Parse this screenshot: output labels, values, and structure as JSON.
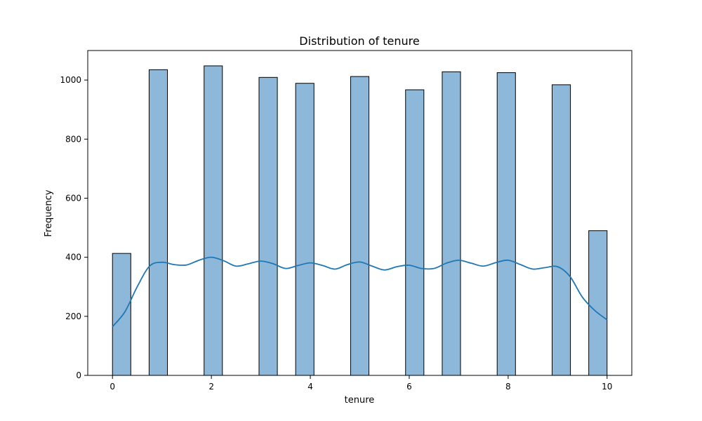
{
  "chart_data": {
    "type": "bar",
    "title": "Distribution of tenure",
    "xlabel": "tenure",
    "ylabel": "Frequency",
    "xlim": [
      -0.5,
      10.5
    ],
    "ylim": [
      0,
      1100
    ],
    "x_ticks": [
      0,
      2,
      4,
      6,
      8,
      10
    ],
    "y_ticks": [
      0,
      200,
      400,
      600,
      800,
      1000
    ],
    "grid": false,
    "legend": "none",
    "bin_width": 0.3704,
    "bars": [
      {
        "x_start": 0.0,
        "x_end": 0.3704,
        "value": 413
      },
      {
        "x_start": 0.7407,
        "x_end": 1.1111,
        "value": 1035
      },
      {
        "x_start": 1.8519,
        "x_end": 2.2222,
        "value": 1048
      },
      {
        "x_start": 2.963,
        "x_end": 3.3333,
        "value": 1009
      },
      {
        "x_start": 3.7037,
        "x_end": 4.0741,
        "value": 989
      },
      {
        "x_start": 4.8148,
        "x_end": 5.1852,
        "value": 1012
      },
      {
        "x_start": 5.9259,
        "x_end": 6.2963,
        "value": 967
      },
      {
        "x_start": 6.6667,
        "x_end": 7.037,
        "value": 1028
      },
      {
        "x_start": 7.7778,
        "x_end": 8.1481,
        "value": 1025
      },
      {
        "x_start": 8.8889,
        "x_end": 9.2593,
        "value": 984
      },
      {
        "x_start": 9.6296,
        "x_end": 10.0,
        "value": 490
      }
    ],
    "kde": {
      "x": [
        0,
        0.25,
        0.5,
        0.75,
        1.0,
        1.25,
        1.5,
        1.75,
        2.0,
        2.25,
        2.5,
        2.75,
        3.0,
        3.25,
        3.5,
        3.75,
        4.0,
        4.25,
        4.5,
        4.75,
        5.0,
        5.25,
        5.5,
        5.75,
        6.0,
        6.25,
        6.5,
        6.75,
        7.0,
        7.25,
        7.5,
        7.75,
        8.0,
        8.25,
        8.5,
        8.75,
        9.0,
        9.25,
        9.5,
        9.75,
        10.0
      ],
      "y": [
        165,
        215,
        300,
        370,
        383,
        375,
        374,
        390,
        400,
        388,
        370,
        378,
        387,
        378,
        362,
        372,
        381,
        372,
        360,
        375,
        384,
        370,
        357,
        368,
        373,
        362,
        362,
        380,
        390,
        380,
        370,
        382,
        390,
        375,
        360,
        365,
        368,
        335,
        265,
        220,
        188
      ]
    },
    "colors": {
      "bar_fill": "#8db8da",
      "bar_edge": "#000000",
      "kde_line": "#1f77b4"
    }
  }
}
